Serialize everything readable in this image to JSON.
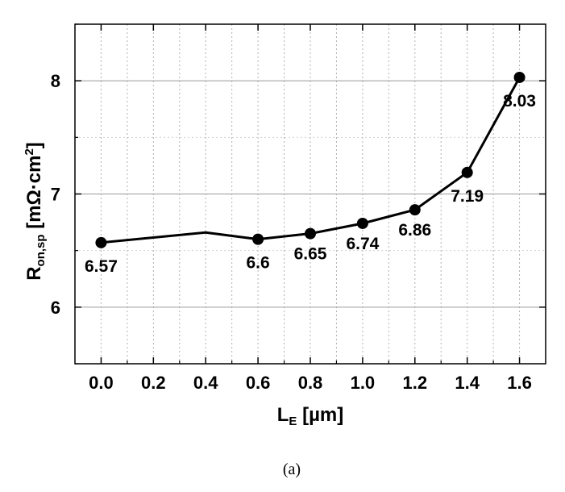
{
  "chart_data": {
    "type": "line",
    "x": [
      0.0,
      0.4,
      0.6,
      0.8,
      1.0,
      1.2,
      1.4,
      1.6
    ],
    "y": [
      6.57,
      6.66,
      6.6,
      6.65,
      6.74,
      6.86,
      7.19,
      8.03
    ],
    "markers": [
      true,
      false,
      true,
      true,
      true,
      true,
      true,
      true
    ],
    "data_labels": [
      "6.57",
      "",
      "6.6",
      "6.65",
      "6.74",
      "6.86",
      "7.19",
      "8.03"
    ],
    "xlim": [
      -0.1,
      1.7
    ],
    "ylim": [
      5.5,
      8.5
    ],
    "x_ticks": [
      "0.0",
      "0.2",
      "0.4",
      "0.6",
      "0.8",
      "1.0",
      "1.2",
      "1.4",
      "1.6"
    ],
    "y_ticks": [
      "6",
      "7",
      "8"
    ],
    "xlabel": {
      "main": "L",
      "sub": "E",
      "rest": " [µm]"
    },
    "ylabel": {
      "main": "R",
      "sub": "on,sp",
      "rest": " [mΩ·cm",
      "sup": "2",
      "end": "]"
    },
    "grid": true,
    "caption": "(a)",
    "colors": {
      "line": "#000000",
      "grid": "#b0b0b0",
      "axis": "#000000"
    }
  }
}
